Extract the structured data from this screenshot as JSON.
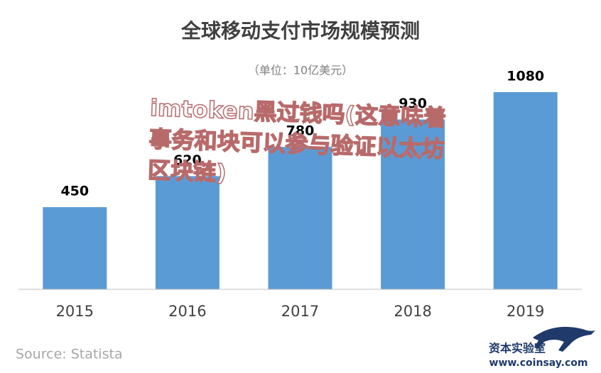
{
  "chart_data": {
    "type": "bar",
    "title": "全球移动支付市场规模预测",
    "subtitle": "（单位：10亿美元）",
    "categories": [
      "2015",
      "2016",
      "2017",
      "2018",
      "2019"
    ],
    "values": [
      450,
      620,
      780,
      930,
      1080
    ],
    "color": "#5b9bd5",
    "ylim": [
      0,
      1200
    ],
    "source": "Source: Statista",
    "annotation": "imtoken黑过钱吗(这意味着事务和块可以参与验证以太坊区块链)",
    "logo": {
      "name": "资本实验室",
      "url": "www.coinsay.com"
    }
  }
}
